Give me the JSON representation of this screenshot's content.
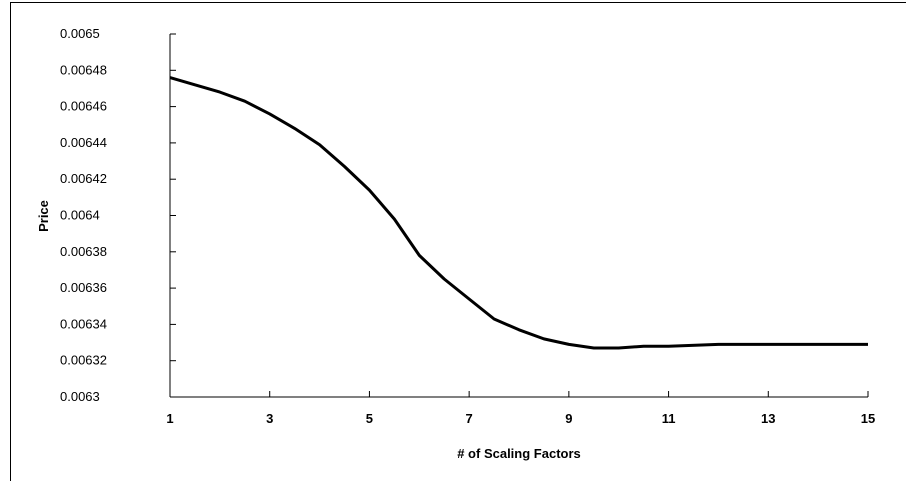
{
  "chart_data": {
    "type": "line",
    "title": "",
    "xlabel": "# of Scaling Factors",
    "ylabel": "Price",
    "xlim": [
      1,
      15
    ],
    "ylim": [
      0.0063,
      0.0065
    ],
    "x_ticks": [
      "1",
      "3",
      "5",
      "7",
      "9",
      "11",
      "13",
      "15"
    ],
    "y_ticks": [
      "0.0063",
      "0.00632",
      "0.00634",
      "0.00636",
      "0.00638",
      "0.0064",
      "0.00642",
      "0.00644",
      "0.00646",
      "0.00648",
      "0.0065"
    ],
    "grid": false,
    "legend": "none",
    "line_color": "#000000",
    "series": [
      {
        "x": [
          1,
          1.5,
          2,
          2.5,
          3,
          3.5,
          4,
          4.5,
          5,
          5.5,
          6,
          6.5,
          7,
          7.5,
          8,
          8.5,
          9,
          9.5,
          10,
          10.5,
          11,
          12,
          13,
          14,
          15
        ],
        "values": [
          0.006476,
          0.006472,
          0.006468,
          0.006463,
          0.006456,
          0.006448,
          0.006439,
          0.006427,
          0.006414,
          0.006398,
          0.006378,
          0.006365,
          0.006354,
          0.006343,
          0.006337,
          0.006332,
          0.006329,
          0.006327,
          0.006327,
          0.006328,
          0.006328,
          0.006329,
          0.006329,
          0.006329,
          0.006329
        ]
      }
    ]
  }
}
